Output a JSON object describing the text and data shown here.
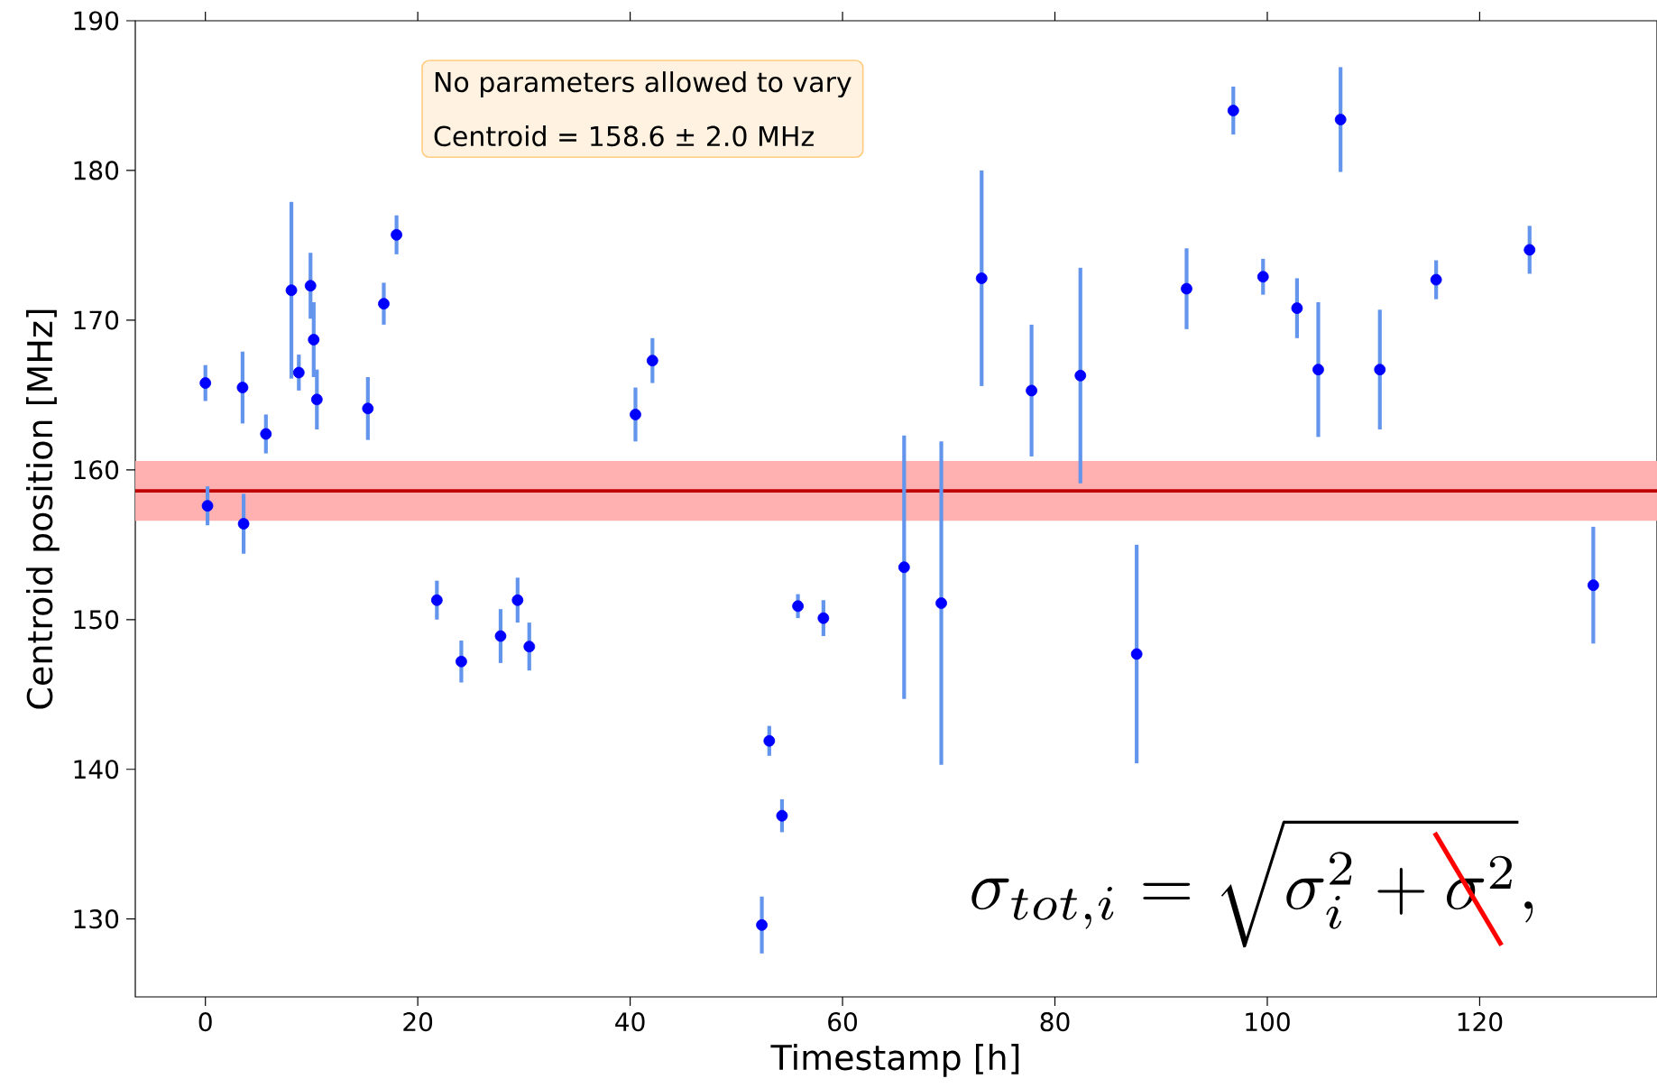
{
  "chart_data": {
    "type": "scatter",
    "xlabel": "Timestamp [h]",
    "ylabel": "Centroid position [MHz]",
    "x": [
      0,
      0.2,
      3.5,
      3.6,
      5.7,
      8.1,
      8.8,
      9.9,
      10.2,
      10.5,
      15.3,
      16.8,
      18.0,
      21.8,
      24.1,
      27.8,
      29.4,
      30.5,
      40.5,
      42.1,
      52.4,
      53.1,
      54.3,
      55.8,
      58.2,
      65.8,
      69.3,
      73.1,
      77.8,
      82.4,
      87.7,
      92.4,
      96.8,
      99.6,
      102.8,
      104.8,
      106.9,
      110.6,
      115.9,
      124.7,
      130.7
    ],
    "series": [
      {
        "color": "#0000ff",
        "values": [
          165.8,
          157.6,
          165.5,
          156.4,
          162.4,
          172.0,
          166.5,
          172.3,
          168.7,
          164.7,
          164.1,
          171.1,
          175.7,
          151.3,
          147.2,
          148.9,
          151.3,
          148.2,
          163.7,
          167.3,
          129.6,
          141.9,
          136.9,
          150.9,
          150.1,
          153.5,
          151.1,
          172.8,
          165.3,
          166.3,
          147.7,
          172.1,
          184.0,
          172.9,
          170.8,
          166.7,
          183.4,
          166.7,
          172.7,
          174.7,
          152.3
        ],
        "errors": [
          1.2,
          1.3,
          2.4,
          2.0,
          1.3,
          5.9,
          1.2,
          2.2,
          2.5,
          2.0,
          2.1,
          1.4,
          1.3,
          1.3,
          1.4,
          1.8,
          1.5,
          1.6,
          1.8,
          1.5,
          1.9,
          1.0,
          1.1,
          0.8,
          1.2,
          8.8,
          10.8,
          7.2,
          4.4,
          7.2,
          7.3,
          2.7,
          1.6,
          1.2,
          2.0,
          4.5,
          3.5,
          4.0,
          1.3,
          1.6,
          3.9
        ]
      }
    ],
    "xlim": [
      -6.6,
      136.7
    ],
    "ylim": [
      124.8,
      190
    ],
    "xticks": [
      0,
      20,
      40,
      60,
      80,
      100,
      120
    ],
    "yticks": [
      130,
      140,
      150,
      160,
      170,
      180,
      190
    ],
    "ref_lines": [
      {
        "axis": "y",
        "value": 158.6,
        "color": "#c00000"
      }
    ],
    "bands": [
      {
        "axis": "y",
        "from": 156.6,
        "to": 160.6,
        "color": "#ffb0b0"
      }
    ],
    "annotations": [
      "No parameters allowed to vary",
      "Centroid = 158.6 ± 2.0 MHz",
      "\\sigma_{tot,i} = \\sqrt{\\sigma_i^2 + \\sigma^2},"
    ],
    "grid": false
  }
}
